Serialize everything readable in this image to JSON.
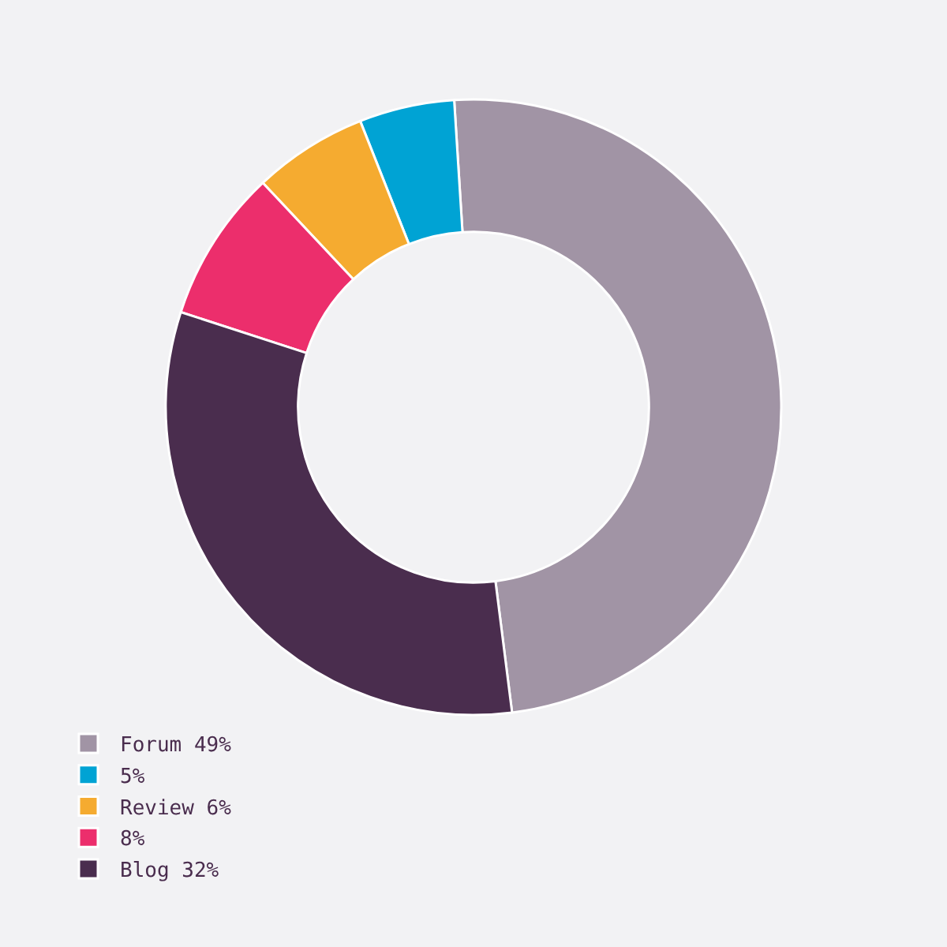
{
  "chart_data": {
    "type": "donut",
    "categories": [
      "Forum 49%",
      "5%",
      "Review 6%",
      "8%",
      "Blog 32%"
    ],
    "values": [
      49,
      5,
      6,
      8,
      32
    ],
    "colors": [
      "#a194a5",
      "#00a3d4",
      "#f5ab30",
      "#ec2e6c",
      "#4a2d4e"
    ],
    "legend": "bottom left"
  }
}
